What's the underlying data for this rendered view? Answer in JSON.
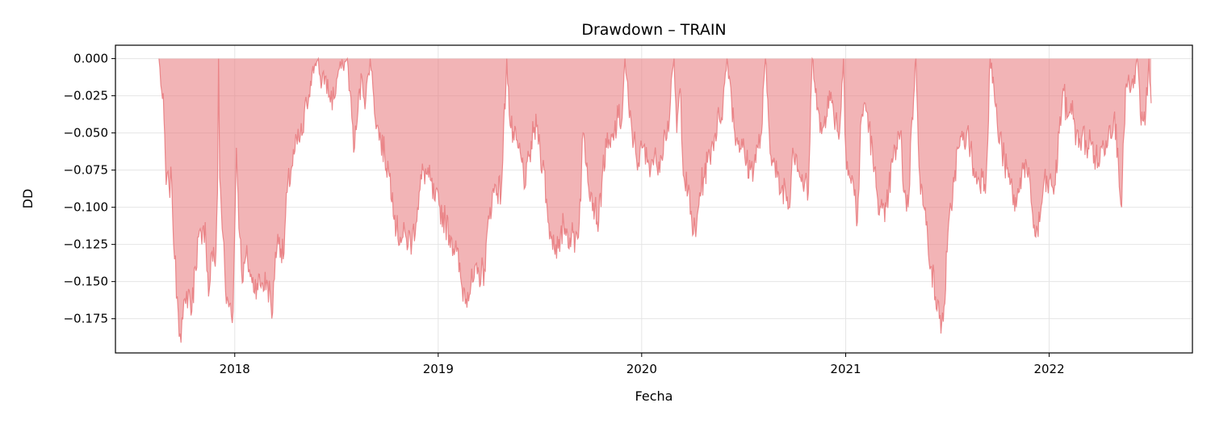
{
  "chart_data": {
    "type": "area",
    "title": "Drawdown – TRAIN",
    "xlabel": "Fecha",
    "ylabel": "DD",
    "xlim": [
      "2017-06-01",
      "2022-09-15"
    ],
    "ylim": [
      -0.198,
      0.009
    ],
    "grid": true,
    "colors": {
      "fill": "#e8777a",
      "line": "#e8777a",
      "grid": "#e5e5e5",
      "frame": "#000000"
    },
    "x_ticks": [
      {
        "label": "2018",
        "date": "2018-01-01"
      },
      {
        "label": "2019",
        "date": "2019-01-01"
      },
      {
        "label": "2020",
        "date": "2020-01-01"
      },
      {
        "label": "2021",
        "date": "2021-01-01"
      },
      {
        "label": "2022",
        "date": "2022-01-01"
      }
    ],
    "y_ticks": [
      {
        "label": "0.000",
        "value": 0.0
      },
      {
        "label": "−0.025",
        "value": -0.025
      },
      {
        "label": "−0.050",
        "value": -0.05
      },
      {
        "label": "−0.075",
        "value": -0.075
      },
      {
        "label": "−0.100",
        "value": -0.1
      },
      {
        "label": "−0.125",
        "value": -0.125
      },
      {
        "label": "−0.150",
        "value": -0.15
      },
      {
        "label": "−0.175",
        "value": -0.175
      }
    ],
    "series": [
      {
        "dates": [
          "2017-08-18",
          "2017-08-23",
          "2017-08-27",
          "2017-08-31",
          "2017-09-05",
          "2017-09-10",
          "2017-09-15",
          "2017-09-20",
          "2017-09-25",
          "2017-09-30",
          "2017-10-05",
          "2017-10-10",
          "2017-10-16",
          "2017-10-22",
          "2017-10-28",
          "2017-11-03",
          "2017-11-09",
          "2017-11-15",
          "2017-11-21",
          "2017-11-27",
          "2017-12-01",
          "2017-12-03",
          "2017-12-05",
          "2017-12-11",
          "2017-12-17",
          "2017-12-23",
          "2017-12-29",
          "2018-01-04",
          "2018-01-10",
          "2018-01-16",
          "2018-01-20",
          "2018-01-24",
          "2018-02-01",
          "2018-02-10",
          "2018-02-20",
          "2018-03-01",
          "2018-03-10",
          "2018-03-15",
          "2018-03-22",
          "2018-03-29",
          "2018-04-05",
          "2018-04-12",
          "2018-04-19",
          "2018-04-26",
          "2018-05-03",
          "2018-05-10",
          "2018-05-17",
          "2018-05-24",
          "2018-05-31",
          "2018-06-05",
          "2018-06-12",
          "2018-06-20",
          "2018-06-28",
          "2018-07-06",
          "2018-07-14",
          "2018-07-22",
          "2018-07-30",
          "2018-08-04",
          "2018-08-10",
          "2018-08-17",
          "2018-08-24",
          "2018-09-01",
          "2018-09-06",
          "2018-09-13",
          "2018-09-20",
          "2018-09-27",
          "2018-10-04",
          "2018-10-11",
          "2018-10-18",
          "2018-10-25",
          "2018-11-05",
          "2018-11-15",
          "2018-11-25",
          "2018-12-05",
          "2018-12-15",
          "2018-12-25",
          "2019-01-04",
          "2019-01-14",
          "2019-01-24",
          "2019-02-03",
          "2019-02-13",
          "2019-02-23",
          "2019-03-05",
          "2019-03-15",
          "2019-03-25",
          "2019-04-04",
          "2019-04-14",
          "2019-04-24",
          "2019-05-04",
          "2019-05-10",
          "2019-05-17",
          "2019-05-24",
          "2019-05-31",
          "2019-06-07",
          "2019-06-14",
          "2019-06-21",
          "2019-06-28",
          "2019-07-03",
          "2019-07-10",
          "2019-07-17",
          "2019-07-24",
          "2019-07-31",
          "2019-08-07",
          "2019-08-14",
          "2019-08-21",
          "2019-08-28",
          "2019-09-04",
          "2019-09-11",
          "2019-09-18",
          "2019-09-25",
          "2019-10-02",
          "2019-10-09",
          "2019-10-16",
          "2019-10-23",
          "2019-10-30",
          "2019-11-06",
          "2019-11-13",
          "2019-11-20",
          "2019-11-27",
          "2019-12-02",
          "2019-12-10",
          "2019-12-18",
          "2019-12-26",
          "2020-01-03",
          "2020-01-11",
          "2020-01-19",
          "2020-01-27",
          "2020-02-04",
          "2020-02-12",
          "2020-02-20",
          "2020-02-28",
          "2020-03-04",
          "2020-03-10",
          "2020-03-17",
          "2020-03-24",
          "2020-03-31",
          "2020-04-07",
          "2020-04-14",
          "2020-04-21",
          "2020-04-28",
          "2020-05-05",
          "2020-05-12",
          "2020-05-19",
          "2020-05-26",
          "2020-06-02",
          "2020-06-09",
          "2020-06-16",
          "2020-06-23",
          "2020-06-30",
          "2020-07-07",
          "2020-07-14",
          "2020-07-21",
          "2020-07-28",
          "2020-08-03",
          "2020-08-10",
          "2020-08-17",
          "2020-08-24",
          "2020-08-31",
          "2020-09-07",
          "2020-09-14",
          "2020-09-21",
          "2020-09-28",
          "2020-10-05",
          "2020-10-12",
          "2020-10-19",
          "2020-10-26",
          "2020-11-02",
          "2020-11-09",
          "2020-11-16",
          "2020-11-23",
          "2020-11-30",
          "2020-12-07",
          "2020-12-14",
          "2020-12-21",
          "2020-12-28",
          "2021-01-01",
          "2021-01-08",
          "2021-01-15",
          "2021-01-22",
          "2021-01-29",
          "2021-02-05",
          "2021-02-12",
          "2021-02-19",
          "2021-02-26",
          "2021-03-05",
          "2021-03-12",
          "2021-03-19",
          "2021-03-26",
          "2021-04-02",
          "2021-04-09",
          "2021-04-16",
          "2021-04-23",
          "2021-04-30",
          "2021-05-07",
          "2021-05-14",
          "2021-05-21",
          "2021-05-28",
          "2021-06-04",
          "2021-06-11",
          "2021-06-18",
          "2021-06-25",
          "2021-07-02",
          "2021-07-09",
          "2021-07-16",
          "2021-07-23",
          "2021-07-30",
          "2021-08-06",
          "2021-08-13",
          "2021-08-20",
          "2021-08-27",
          "2021-09-03",
          "2021-09-10",
          "2021-09-17",
          "2021-09-24",
          "2021-10-01",
          "2021-10-08",
          "2021-10-13",
          "2021-10-20",
          "2021-10-27",
          "2021-11-03",
          "2021-11-10",
          "2021-11-17",
          "2021-11-24",
          "2021-12-01",
          "2021-12-08",
          "2021-12-15",
          "2021-12-22",
          "2021-12-29",
          "2022-01-05",
          "2022-01-12",
          "2022-01-19",
          "2022-01-26",
          "2022-02-02",
          "2022-02-09",
          "2022-02-16",
          "2022-02-23",
          "2022-03-02",
          "2022-03-09",
          "2022-03-16",
          "2022-03-23",
          "2022-03-30",
          "2022-04-06",
          "2022-04-13",
          "2022-04-20",
          "2022-04-27",
          "2022-05-04",
          "2022-05-11",
          "2022-05-18",
          "2022-05-25",
          "2022-06-01",
          "2022-06-08",
          "2022-06-15",
          "2022-06-22",
          "2022-06-29",
          "2022-07-03"
        ],
        "values": [
          0.0,
          -0.022,
          -0.04,
          -0.085,
          -0.085,
          -0.083,
          -0.135,
          -0.16,
          -0.185,
          -0.175,
          -0.165,
          -0.155,
          -0.17,
          -0.14,
          -0.12,
          -0.125,
          -0.11,
          -0.16,
          -0.13,
          -0.14,
          -0.09,
          0.0,
          -0.08,
          -0.12,
          -0.165,
          -0.165,
          -0.17,
          -0.06,
          -0.12,
          -0.15,
          -0.135,
          -0.135,
          -0.151,
          -0.151,
          -0.151,
          -0.151,
          -0.171,
          -0.13,
          -0.12,
          -0.135,
          -0.09,
          -0.075,
          -0.062,
          -0.055,
          -0.05,
          -0.03,
          -0.015,
          -0.005,
          0.0,
          -0.02,
          -0.012,
          -0.025,
          -0.027,
          -0.008,
          -0.005,
          0.0,
          -0.04,
          -0.06,
          -0.035,
          -0.012,
          -0.028,
          0.0,
          -0.02,
          -0.045,
          -0.055,
          -0.065,
          -0.075,
          -0.09,
          -0.115,
          -0.12,
          -0.121,
          -0.123,
          -0.1,
          -0.075,
          -0.08,
          -0.095,
          -0.1,
          -0.11,
          -0.12,
          -0.13,
          -0.155,
          -0.157,
          -0.15,
          -0.145,
          -0.142,
          -0.1,
          -0.085,
          -0.09,
          0.0,
          -0.045,
          -0.055,
          -0.06,
          -0.07,
          -0.085,
          -0.065,
          -0.05,
          -0.045,
          -0.062,
          -0.075,
          -0.11,
          -0.12,
          -0.125,
          -0.13,
          -0.11,
          -0.118,
          -0.12,
          -0.121,
          -0.11,
          -0.05,
          -0.07,
          -0.09,
          -0.1,
          -0.11,
          -0.075,
          -0.06,
          -0.06,
          -0.05,
          -0.04,
          -0.04,
          0.0,
          -0.04,
          -0.055,
          -0.07,
          -0.06,
          -0.07,
          -0.068,
          -0.07,
          -0.065,
          -0.05,
          -0.04,
          0.0,
          -0.05,
          -0.02,
          -0.08,
          -0.09,
          -0.11,
          -0.12,
          -0.09,
          -0.08,
          -0.07,
          -0.06,
          -0.05,
          -0.04,
          -0.03,
          0.0,
          -0.02,
          -0.05,
          -0.055,
          -0.06,
          -0.07,
          -0.075,
          -0.07,
          -0.06,
          -0.05,
          0.0,
          -0.05,
          -0.07,
          -0.08,
          -0.09,
          -0.085,
          -0.1,
          -0.06,
          -0.065,
          -0.08,
          -0.085,
          -0.09,
          0.0,
          -0.02,
          -0.05,
          -0.045,
          -0.025,
          -0.03,
          -0.04,
          -0.05,
          0.0,
          -0.06,
          -0.08,
          -0.085,
          -0.11,
          -0.04,
          -0.03,
          -0.045,
          -0.07,
          -0.09,
          -0.1,
          -0.11,
          -0.09,
          -0.07,
          -0.06,
          -0.05,
          -0.09,
          -0.1,
          -0.04,
          0.0,
          -0.08,
          -0.1,
          -0.12,
          -0.14,
          -0.16,
          -0.175,
          -0.177,
          -0.13,
          -0.1,
          -0.075,
          -0.06,
          -0.055,
          -0.05,
          -0.06,
          -0.08,
          -0.08,
          -0.08,
          -0.08,
          0.0,
          -0.02,
          -0.05,
          -0.06,
          -0.07,
          -0.08,
          -0.09,
          -0.1,
          -0.08,
          -0.07,
          -0.08,
          -0.1,
          -0.12,
          -0.11,
          -0.085,
          -0.085,
          -0.085,
          -0.085,
          -0.05,
          -0.02,
          -0.04,
          -0.03,
          -0.045,
          -0.06,
          -0.05,
          -0.06,
          -0.055,
          -0.065,
          -0.07,
          -0.06,
          -0.055,
          -0.045,
          -0.04,
          -0.06,
          -0.1,
          -0.02,
          -0.02,
          -0.02,
          0.0,
          -0.045,
          -0.045,
          0.0,
          -0.03
        ]
      }
    ]
  }
}
